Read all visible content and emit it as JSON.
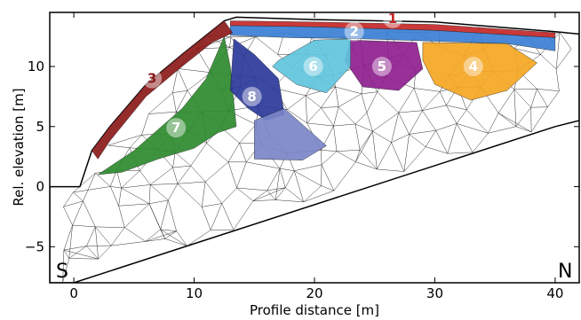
{
  "chart_data": {
    "type": "other",
    "xlabel": "Profile distance [m]",
    "ylabel": "Rel. elevation [m]",
    "xlim": [
      -2,
      42
    ],
    "ylim": [
      -8,
      14.5
    ],
    "xticks": [
      0,
      10,
      20,
      30,
      40
    ],
    "yticks": [
      -5,
      0,
      5,
      10
    ],
    "xtick_labels": [
      "0",
      "10",
      "20",
      "30",
      "40"
    ],
    "ytick_labels": [
      "−5",
      "0",
      "5",
      "10"
    ],
    "corner_labels": {
      "left": "S",
      "right": "N"
    },
    "regions": [
      {
        "id": "1",
        "label": "1",
        "color": "#c62828",
        "label_color": "#c62828",
        "polygon": [
          [
            13,
            13.8
          ],
          [
            20,
            13.7
          ],
          [
            30,
            13.5
          ],
          [
            40,
            12.8
          ],
          [
            40,
            12.4
          ],
          [
            30,
            13.0
          ],
          [
            20,
            13.3
          ],
          [
            13,
            13.4
          ]
        ]
      },
      {
        "id": "2",
        "label": "2",
        "color": "#3a7fd5",
        "label_color": "#ffffff",
        "polygon": [
          [
            13,
            13.4
          ],
          [
            20,
            13.3
          ],
          [
            30,
            13.0
          ],
          [
            40,
            12.4
          ],
          [
            40,
            11.3
          ],
          [
            36,
            11.9
          ],
          [
            30,
            12.1
          ],
          [
            24,
            12.3
          ],
          [
            18,
            12.4
          ],
          [
            13,
            12.6
          ]
        ]
      },
      {
        "id": "3",
        "label": "3",
        "color": "#8b1a1a",
        "label_color": "#8b1a1a",
        "polygon": [
          [
            1.5,
            3
          ],
          [
            3,
            5
          ],
          [
            6,
            8.5
          ],
          [
            9,
            11
          ],
          [
            12.5,
            13.8
          ],
          [
            13.2,
            12.8
          ],
          [
            11.5,
            12
          ],
          [
            9,
            10
          ],
          [
            6,
            7.5
          ],
          [
            3,
            3.8
          ],
          [
            2,
            2.3
          ]
        ]
      },
      {
        "id": "4",
        "label": "4",
        "color": "#f5a623",
        "label_color": "#ffffff",
        "polygon": [
          [
            29,
            12
          ],
          [
            36,
            11.9
          ],
          [
            38.5,
            10.3
          ],
          [
            36,
            8
          ],
          [
            33,
            7.2
          ],
          [
            30,
            8.5
          ],
          [
            29,
            10.5
          ]
        ]
      },
      {
        "id": "5",
        "label": "5",
        "color": "#8e1e8e",
        "label_color": "#ffffff",
        "polygon": [
          [
            23,
            12.2
          ],
          [
            28.5,
            12
          ],
          [
            29,
            9.8
          ],
          [
            27,
            8
          ],
          [
            24,
            8.3
          ],
          [
            22.5,
            10.5
          ]
        ]
      },
      {
        "id": "6",
        "label": "6",
        "color": "#5fc4dc",
        "label_color": "#ffffff",
        "polygon": [
          [
            17,
            10.5
          ],
          [
            20,
            12.2
          ],
          [
            23,
            12.3
          ],
          [
            23,
            10
          ],
          [
            21,
            7.8
          ],
          [
            18.5,
            8.5
          ],
          [
            16.5,
            10
          ]
        ]
      },
      {
        "id": "7",
        "label": "7",
        "color": "#2e8b2e",
        "label_color": "#ffffff",
        "polygon": [
          [
            2,
            1
          ],
          [
            5,
            3
          ],
          [
            9,
            6.5
          ],
          [
            11,
            9
          ],
          [
            12.5,
            12.5
          ],
          [
            13,
            10
          ],
          [
            13.5,
            5
          ],
          [
            12,
            4.5
          ],
          [
            10,
            3.2
          ],
          [
            7,
            2.3
          ],
          [
            4,
            1.2
          ]
        ]
      },
      {
        "id": "8",
        "label": "8",
        "color": "#2b3a9b",
        "label_color": "#ffffff",
        "polygon": [
          [
            13.3,
            12.3
          ],
          [
            15,
            11
          ],
          [
            17,
            9
          ],
          [
            17.5,
            6
          ],
          [
            16,
            5.5
          ],
          [
            14.5,
            6.5
          ],
          [
            13,
            8
          ]
        ]
      },
      {
        "id": "8b",
        "label": "",
        "color": "#7a85c8",
        "label_color": "#ffffff",
        "polygon": [
          [
            15,
            5.5
          ],
          [
            17.5,
            6.5
          ],
          [
            21,
            3.4
          ],
          [
            19,
            2.2
          ],
          [
            15,
            2.3
          ]
        ]
      }
    ],
    "label_positions": [
      {
        "id": "1",
        "x": 26.5,
        "y": 14.0
      },
      {
        "id": "2",
        "x": 23.3,
        "y": 12.9
      },
      {
        "id": "3",
        "x": 6.5,
        "y": 9.0
      },
      {
        "id": "4",
        "x": 33.2,
        "y": 10.0
      },
      {
        "id": "5",
        "x": 25.6,
        "y": 10.0
      },
      {
        "id": "6",
        "x": 19.9,
        "y": 10.0
      },
      {
        "id": "7",
        "x": 8.5,
        "y": 4.9
      },
      {
        "id": "8",
        "x": 14.8,
        "y": 7.5
      }
    ],
    "grid": false
  }
}
